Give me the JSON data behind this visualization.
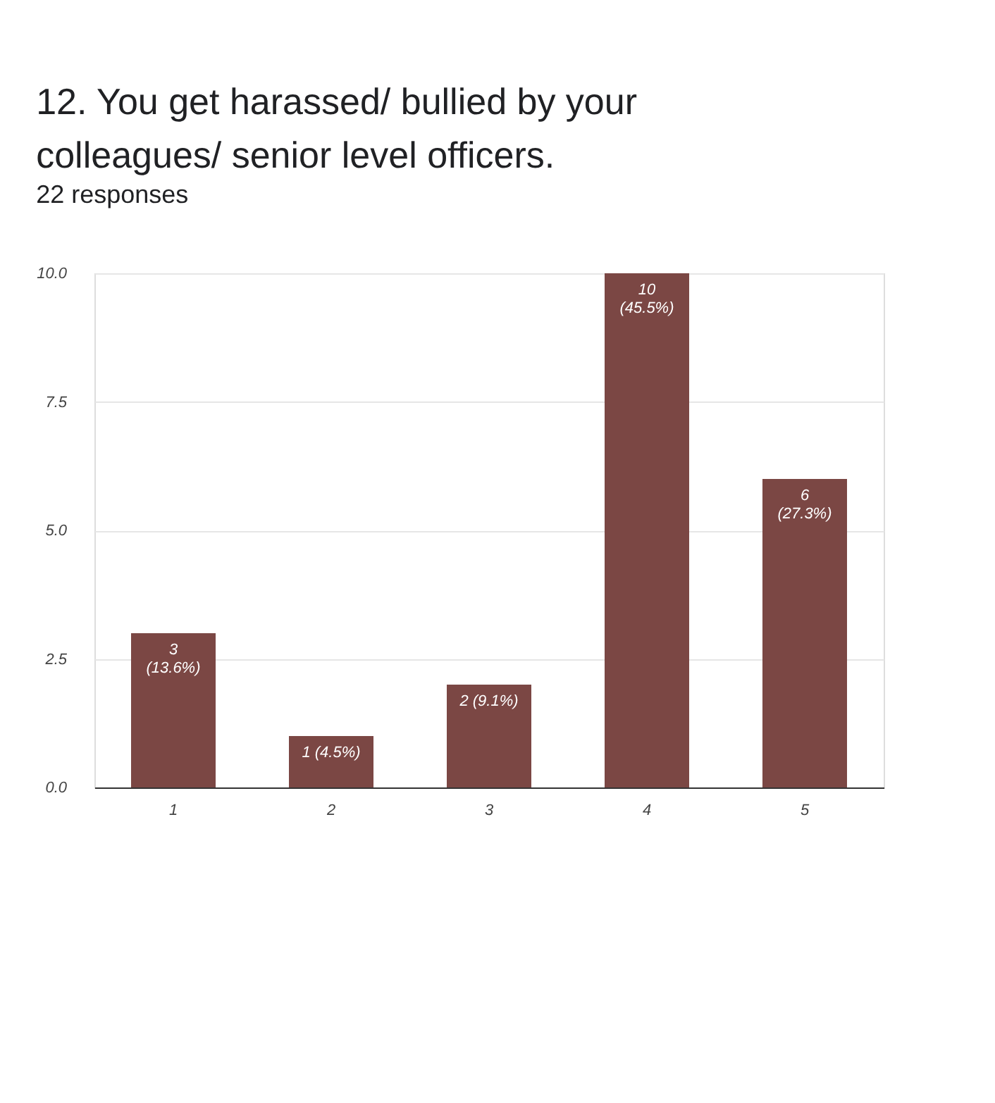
{
  "chart_data": {
    "type": "bar",
    "title": "12. You get harassed/ bullied by your colleagues/ senior level officers.",
    "subtitle": "22 responses",
    "categories": [
      "1",
      "2",
      "3",
      "4",
      "5"
    ],
    "values": [
      3,
      1,
      2,
      10,
      6
    ],
    "value_labels": [
      "3\n(13.6%)",
      "1 (4.5%)",
      "2 (9.1%)",
      "10\n(45.5%)",
      "6\n(27.3%)"
    ],
    "color": "#7b4744",
    "ylim": [
      0,
      10
    ],
    "yticks": [
      {
        "value": 0,
        "label": "0.0"
      },
      {
        "value": 2.5,
        "label": "2.5"
      },
      {
        "value": 5,
        "label": "5.0"
      },
      {
        "value": 7.5,
        "label": "7.5"
      },
      {
        "value": 10,
        "label": "10.0"
      }
    ],
    "grid": "y"
  }
}
